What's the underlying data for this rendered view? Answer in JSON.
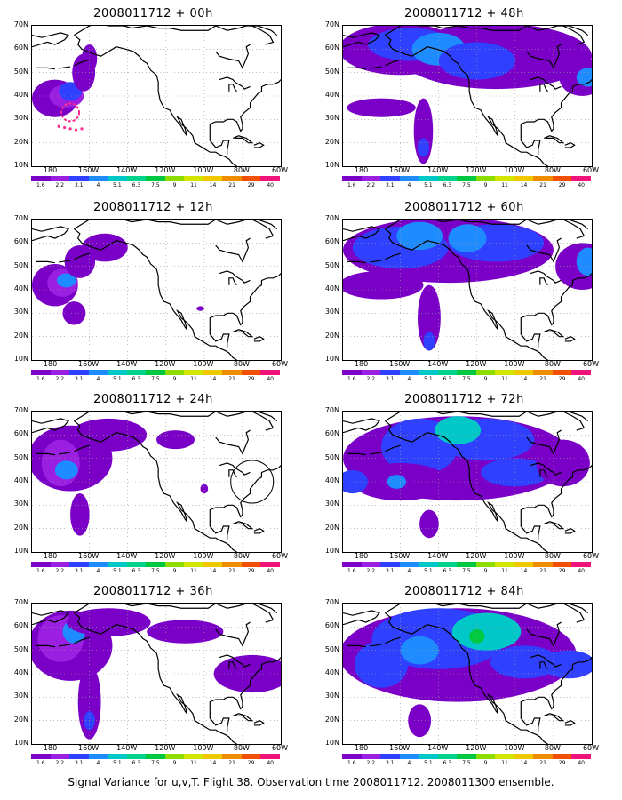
{
  "lat_labels": [
    "70N",
    "60N",
    "50N",
    "40N",
    "30N",
    "20N",
    "10N"
  ],
  "lon_labels": [
    "180",
    "160W",
    "140W",
    "120W",
    "100W",
    "80W",
    "60W"
  ],
  "colorbar": {
    "labels": [
      "1.6",
      "2.2",
      "3.1",
      "4",
      "5.1",
      "6.3",
      "7.5",
      "9",
      "11",
      "14",
      "21",
      "29",
      "40"
    ],
    "colors": [
      "#7a00c8",
      "#9a1fe0",
      "#3040ff",
      "#1e8cff",
      "#00c8c8",
      "#00d28c",
      "#00c840",
      "#8cdc00",
      "#d2e600",
      "#f0c800",
      "#f08c00",
      "#f05000",
      "#f0147a"
    ]
  },
  "panels": [
    {
      "title": "2008011712 + 00h"
    },
    {
      "title": "2008011712 + 48h"
    },
    {
      "title": "2008011712 + 12h"
    },
    {
      "title": "2008011712 + 60h"
    },
    {
      "title": "2008011712 + 24h"
    },
    {
      "title": "2008011712 + 72h"
    },
    {
      "title": "2008011712 + 36h"
    },
    {
      "title": "2008011712 + 84h"
    }
  ],
  "caption": "Signal Variance for u,v,T. Flight 38. Observation time 2008011712. 2008011300 ensemble."
}
